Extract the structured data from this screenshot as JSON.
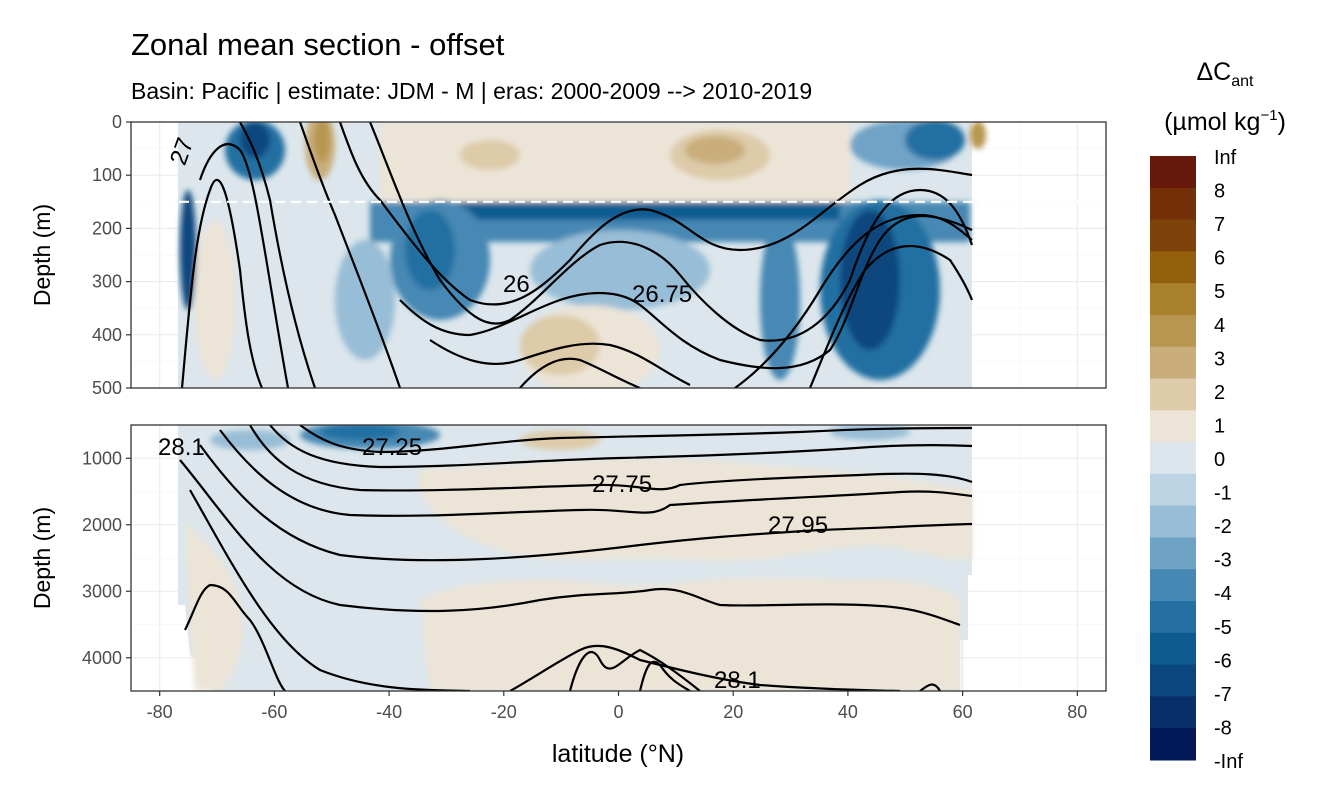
{
  "chart_data": {
    "type": "contour",
    "title": "Zonal mean section - offset",
    "subtitle": "Basin: Pacific | estimate: JDM - M | eras: 2000-2009 --> 2010-2019",
    "xlabel": "latitude (°N)",
    "xlim": [
      -85,
      85
    ],
    "xticks": [
      "-80",
      "-60",
      "-40",
      "-20",
      "0",
      "20",
      "40",
      "60",
      "80"
    ],
    "panels": [
      {
        "ylabel": "Depth (m)",
        "ylim": [
          0,
          500
        ],
        "yticks": [
          "0",
          "100",
          "200",
          "300",
          "400",
          "500"
        ],
        "dashed_line_depth": 150
      },
      {
        "ylabel": "Depth (m)",
        "ylim": [
          500,
          4500
        ],
        "yticks": [
          "1000",
          "2000",
          "3000",
          "4000"
        ]
      }
    ],
    "legend": {
      "title_main": "ΔC",
      "title_sub": "ant",
      "units_main": "(µmol kg",
      "units_sup": "−1",
      "units_close": ")",
      "levels": [
        "Inf",
        "8",
        "7",
        "6",
        "5",
        "4",
        "3",
        "2",
        "1",
        "0",
        "-1",
        "-2",
        "-3",
        "-4",
        "-5",
        "-6",
        "-7",
        "-8",
        "-Inf"
      ],
      "colors": [
        "#67180c",
        "#743109",
        "#7e430a",
        "#93610d",
        "#a9802c",
        "#b7964f",
        "#c9ae7c",
        "#ddcba9",
        "#ece4d7",
        "#dce6ec",
        "#bcd3e3",
        "#98bdd6",
        "#6fa3c6",
        "#4688b4",
        "#236fa2",
        "#0e5b92",
        "#0b467e",
        "#082f69",
        "#031858"
      ]
    },
    "contour_labels": [
      "27",
      "26",
      "26.75",
      "28.1",
      "27.25",
      "27.75",
      "27.95",
      "28.1"
    ]
  }
}
